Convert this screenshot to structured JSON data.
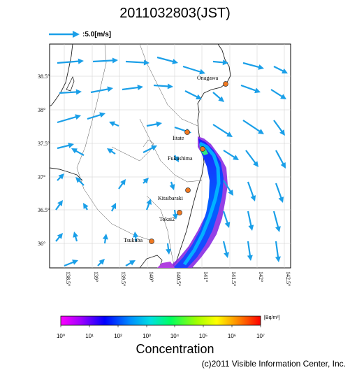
{
  "title": "2011032803(JST)",
  "wind_scale": {
    "label": ":5.0[m/s]",
    "arrow_color": "#1a9fe8"
  },
  "map": {
    "lat_labels": [
      "38.5°",
      "38°",
      "37.5°",
      "37°",
      "36.5°",
      "36°"
    ],
    "lon_labels": [
      "138.5°",
      "139°",
      "139.5°",
      "140°",
      "140.5°",
      "141°",
      "141.5°",
      "142°",
      "142.5°"
    ],
    "sites": [
      {
        "name": "Onagawa"
      },
      {
        "name": "Iitate"
      },
      {
        "name": "Fukushima"
      },
      {
        "name": "Kitaibaraki"
      },
      {
        "name": "Tokai2"
      },
      {
        "name": "Tsukuba"
      }
    ],
    "site_color": "#f07820"
  },
  "colorbar": {
    "unit": "[Bq/m³]",
    "ticks": [
      "10⁰",
      "10¹",
      "10²",
      "10³",
      "10⁴",
      "10⁵",
      "10⁶",
      "10⁷"
    ],
    "title": "Concentration"
  },
  "copyright": "(c)2011 Visible Information Center, Inc."
}
